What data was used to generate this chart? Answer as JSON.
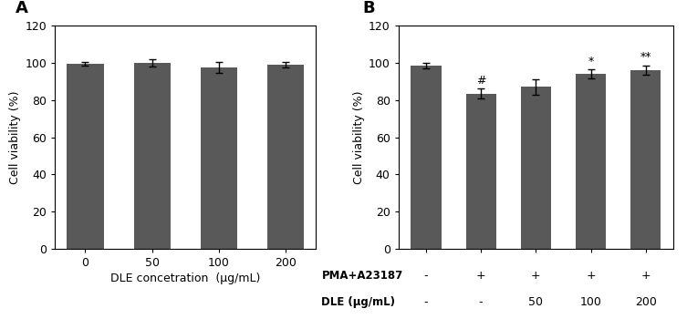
{
  "panel_A": {
    "label": "A",
    "values": [
      99.5,
      100.0,
      97.5,
      99.0
    ],
    "errors": [
      1.0,
      2.0,
      3.0,
      1.5
    ],
    "xtick_labels": [
      "0",
      "50",
      "100",
      "200"
    ],
    "xlabel": "DLE concetration  (μg/mL)",
    "ylabel": "Cell viability (%)",
    "ylim": [
      0,
      120
    ],
    "yticks": [
      0,
      20,
      40,
      60,
      80,
      100,
      120
    ],
    "bar_color": "#595959"
  },
  "panel_B": {
    "label": "B",
    "values": [
      98.5,
      83.5,
      87.0,
      94.0,
      96.0
    ],
    "errors": [
      1.5,
      2.5,
      4.0,
      2.5,
      2.5
    ],
    "ylabel": "Cell viability (%)",
    "ylim": [
      0,
      120
    ],
    "yticks": [
      0,
      20,
      40,
      60,
      80,
      100,
      120
    ],
    "annotations": [
      "",
      "#",
      "",
      "*",
      "**"
    ],
    "row1_label": "PMA+A23187",
    "row1_values": [
      "-",
      "+",
      "+",
      "+",
      "+"
    ],
    "row2_label": "DLE (μg/mL)",
    "row2_values": [
      "-",
      "-",
      "50",
      "100",
      "200"
    ],
    "bar_color": "#595959"
  },
  "fig_width": 7.53,
  "fig_height": 3.5,
  "dpi": 100
}
